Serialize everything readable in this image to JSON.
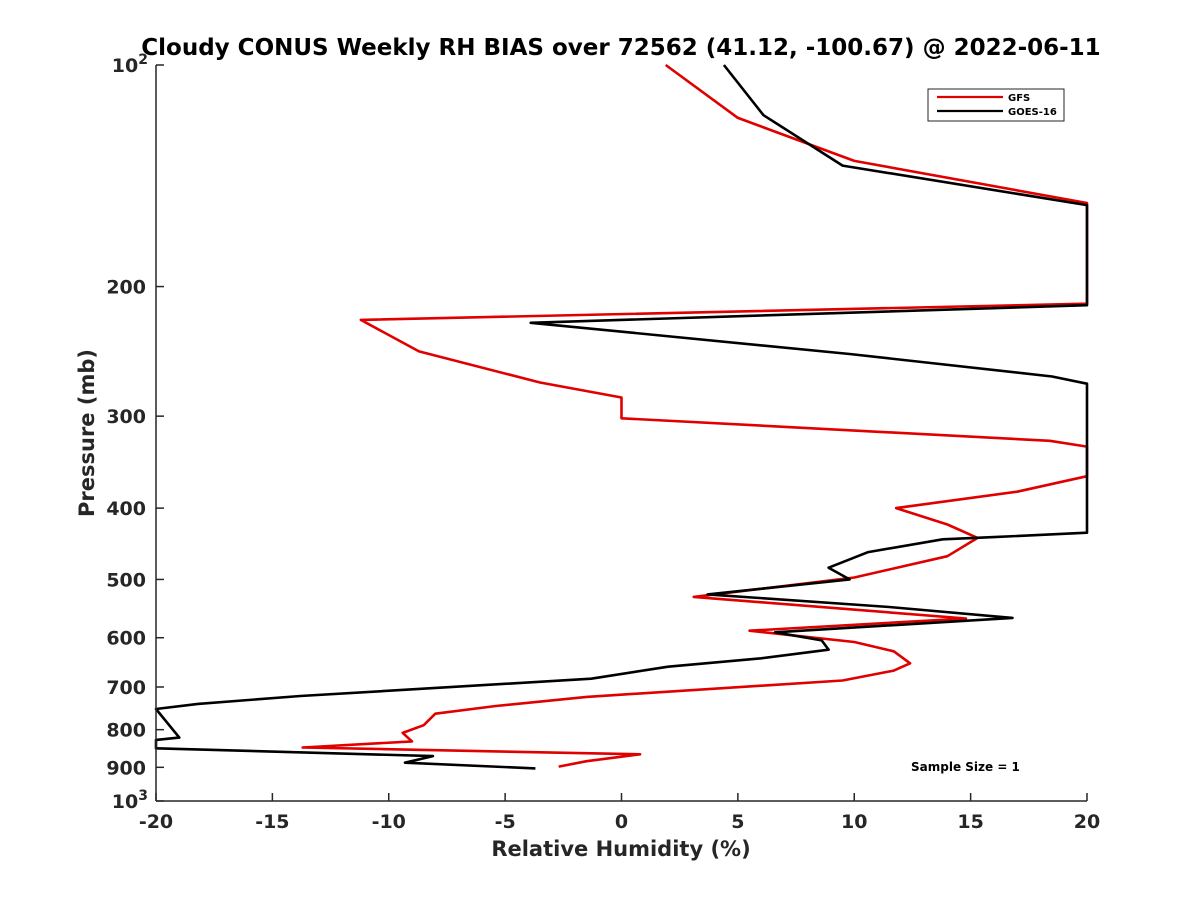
{
  "chart_data": {
    "type": "line",
    "title": "Cloudy CONUS Weekly RH BIAS over 72562 (41.12, -100.67) @ 2022-06-11",
    "xlabel": "Relative Humidity (%)",
    "ylabel": "Pressure (mb)",
    "xlim": [
      -20,
      20
    ],
    "ylim": [
      100,
      1000
    ],
    "y_scale": "log",
    "y_reversed": true,
    "grid": false,
    "legend_position": "top-right",
    "annotation": "Sample Size = 1",
    "x_ticks": [
      "-20",
      "-15",
      "-10",
      "-5",
      "0",
      "5",
      "10",
      "15",
      "20"
    ],
    "y_ticks": [
      {
        "value": 100,
        "base": "10",
        "exp": "2"
      },
      {
        "value": 200,
        "label": "200"
      },
      {
        "value": 300,
        "label": "300"
      },
      {
        "value": 400,
        "label": "400"
      },
      {
        "value": 500,
        "label": "500"
      },
      {
        "value": 600,
        "label": "600"
      },
      {
        "value": 700,
        "label": "700"
      },
      {
        "value": 800,
        "label": "800"
      },
      {
        "value": 900,
        "label": "900"
      },
      {
        "value": 1000,
        "base": "10",
        "exp": "3"
      }
    ],
    "series": [
      {
        "name": "GFS",
        "color": "#e00000",
        "points": [
          [
            1.9,
            100
          ],
          [
            5.0,
            118
          ],
          [
            10.0,
            135
          ],
          [
            20,
            154
          ],
          [
            20,
            211
          ],
          [
            -11.2,
            222
          ],
          [
            -8.7,
            245
          ],
          [
            -3.5,
            270
          ],
          [
            0.0,
            283
          ],
          [
            0.0,
            302
          ],
          [
            18.4,
            324
          ],
          [
            20,
            330
          ],
          [
            20,
            362
          ],
          [
            17.0,
            380
          ],
          [
            11.8,
            400
          ],
          [
            14.0,
            421
          ],
          [
            15.3,
            439
          ],
          [
            14.0,
            465
          ],
          [
            10.0,
            497
          ],
          [
            3.1,
            528
          ],
          [
            14.8,
            565
          ],
          [
            5.5,
            587
          ],
          [
            10.0,
            608
          ],
          [
            11.7,
            626
          ],
          [
            12.4,
            650
          ],
          [
            11.7,
            665
          ],
          [
            9.5,
            686
          ],
          [
            -1.5,
            722
          ],
          [
            -5.4,
            743
          ],
          [
            -8.0,
            761
          ],
          [
            -8.5,
            789
          ],
          [
            -9.4,
            808
          ],
          [
            -9.0,
            830
          ],
          [
            -13.7,
            846
          ],
          [
            0.8,
            864
          ],
          [
            -1.5,
            883
          ],
          [
            -2.7,
            898
          ]
        ]
      },
      {
        "name": "GOES-16",
        "color": "#000000",
        "points": [
          [
            4.4,
            100
          ],
          [
            6.1,
            117
          ],
          [
            9.5,
            137
          ],
          [
            20,
            155
          ],
          [
            20,
            212
          ],
          [
            -3.9,
            224
          ],
          [
            9.8,
            247
          ],
          [
            18.5,
            265
          ],
          [
            20,
            271
          ],
          [
            20,
            432
          ],
          [
            16.0,
            438
          ],
          [
            13.8,
            441
          ],
          [
            10.6,
            459
          ],
          [
            8.9,
            482
          ],
          [
            9.8,
            500
          ],
          [
            3.7,
            524
          ],
          [
            11.5,
            545
          ],
          [
            16.8,
            564
          ],
          [
            6.6,
            590
          ],
          [
            8.6,
            605
          ],
          [
            8.9,
            623
          ],
          [
            6.0,
            640
          ],
          [
            2.0,
            657
          ],
          [
            -1.3,
            682
          ],
          [
            -13.8,
            720
          ],
          [
            -18.2,
            738
          ],
          [
            -20,
            750
          ],
          [
            -19.0,
            820
          ],
          [
            -20,
            826
          ],
          [
            -20,
            848
          ],
          [
            -8.1,
            869
          ],
          [
            -9.3,
            887
          ],
          [
            -3.7,
            903
          ]
        ]
      }
    ]
  }
}
